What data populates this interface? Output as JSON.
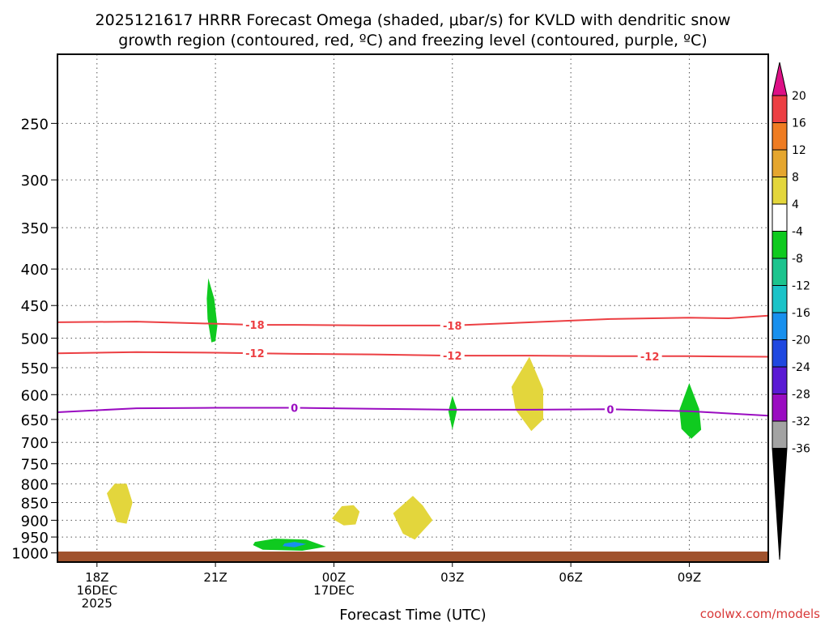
{
  "chart_data": {
    "type": "heatmap",
    "title_line1": "2025121617 HRRR Forecast Omega (shaded, μbar/s) for KVLD with dendritic snow",
    "title_line2": "growth region (contoured, red, ºC) and freezing level (contoured, purple, ºC)",
    "xlabel": "Forecast Time (UTC)",
    "ylabel": "",
    "credit": "coolwx.com/models",
    "x_ticks": [
      {
        "hour": 1,
        "lines": [
          "18Z",
          "16DEC",
          "2025"
        ]
      },
      {
        "hour": 4,
        "lines": [
          "21Z"
        ]
      },
      {
        "hour": 7,
        "lines": [
          "00Z",
          "17DEC"
        ]
      },
      {
        "hour": 10,
        "lines": [
          "03Z"
        ]
      },
      {
        "hour": 13,
        "lines": [
          "06Z"
        ]
      },
      {
        "hour": 16,
        "lines": [
          "09Z"
        ]
      }
    ],
    "xlim": [
      0,
      18
    ],
    "y_ticks": [
      250,
      300,
      350,
      400,
      450,
      500,
      550,
      600,
      650,
      700,
      750,
      800,
      850,
      900,
      950,
      1000
    ],
    "ylim_hpa": [
      200,
      1030
    ],
    "y_scale": "log, pressure increasing downward",
    "grid": true,
    "colorbar": {
      "labels": [
        "20",
        "16",
        "12",
        "8",
        "4",
        "-4",
        "-8",
        "-12",
        "-16",
        "-20",
        "-24",
        "-28",
        "-32",
        "-36"
      ],
      "colors": [
        "#ec3f43",
        "#ef7c22",
        "#e5a62e",
        "#e3d63c",
        "#ffffff",
        "#0fca1f",
        "#1cc48e",
        "#1bc3c8",
        "#1890ee",
        "#1f48e0",
        "#5a1ad4",
        "#9a0cc1",
        "#a3a3a3"
      ],
      "top_arrow_color": "#dd1086",
      "bottom_arrow_color": "#000000"
    },
    "contours": [
      {
        "label": "-18",
        "color": "#ec3f43",
        "points": [
          [
            0,
            475
          ],
          [
            2,
            474
          ],
          [
            5,
            479
          ],
          [
            6,
            479
          ],
          [
            8,
            480
          ],
          [
            10,
            480
          ],
          [
            12,
            475
          ],
          [
            14,
            470
          ],
          [
            16,
            468
          ],
          [
            17,
            469
          ],
          [
            18,
            465
          ]
        ],
        "label_hours": [
          5,
          10
        ]
      },
      {
        "label": "-12",
        "color": "#ec3f43",
        "points": [
          [
            0,
            525
          ],
          [
            2,
            523
          ],
          [
            4,
            524
          ],
          [
            6,
            526
          ],
          [
            8,
            527
          ],
          [
            10,
            529
          ],
          [
            12,
            529
          ],
          [
            14,
            530
          ],
          [
            16,
            530
          ],
          [
            18,
            531
          ]
        ],
        "label_hours": [
          5,
          10,
          15
        ]
      },
      {
        "label": "0",
        "color": "#9a0cc1",
        "points": [
          [
            0,
            635
          ],
          [
            2,
            627
          ],
          [
            4,
            626
          ],
          [
            6,
            626
          ],
          [
            8,
            628
          ],
          [
            10,
            630
          ],
          [
            12,
            630
          ],
          [
            14,
            629
          ],
          [
            16,
            633
          ],
          [
            18,
            642
          ]
        ],
        "label_hours": [
          6,
          14
        ]
      }
    ],
    "omega_regions": [
      {
        "value": -8,
        "color": "#0fca1f",
        "points": [
          [
            3.82,
            412
          ],
          [
            3.97,
            440
          ],
          [
            4.05,
            480
          ],
          [
            4.0,
            505
          ],
          [
            3.9,
            507
          ],
          [
            3.8,
            470
          ],
          [
            3.78,
            440
          ]
        ]
      },
      {
        "value": 6,
        "color": "#e3d63c",
        "points": [
          [
            1.45,
            800
          ],
          [
            1.25,
            825
          ],
          [
            1.5,
            905
          ],
          [
            1.75,
            910
          ],
          [
            1.9,
            850
          ],
          [
            1.75,
            800
          ]
        ]
      },
      {
        "value": -8,
        "color": "#0fca1f",
        "points": [
          [
            5.0,
            965
          ],
          [
            5.5,
            955
          ],
          [
            6.3,
            958
          ],
          [
            6.8,
            980
          ],
          [
            6.2,
            993
          ],
          [
            5.2,
            990
          ],
          [
            4.95,
            975
          ]
        ]
      },
      {
        "value": -16,
        "color": "#1890ee",
        "points": [
          [
            5.75,
            970
          ],
          [
            6.0,
            965
          ],
          [
            6.3,
            972
          ],
          [
            6.0,
            982
          ],
          [
            5.7,
            978
          ]
        ]
      },
      {
        "value": 6,
        "color": "#e3d63c",
        "points": [
          [
            7.2,
            860
          ],
          [
            7.5,
            857
          ],
          [
            7.65,
            875
          ],
          [
            7.55,
            912
          ],
          [
            7.25,
            915
          ],
          [
            6.95,
            895
          ]
        ]
      },
      {
        "value": 6,
        "color": "#e3d63c",
        "points": [
          [
            9.0,
            832
          ],
          [
            9.25,
            858
          ],
          [
            9.5,
            900
          ],
          [
            9.05,
            958
          ],
          [
            8.75,
            940
          ],
          [
            8.5,
            880
          ]
        ]
      },
      {
        "value": -8,
        "color": "#0fca1f",
        "points": [
          [
            10.0,
            602
          ],
          [
            10.12,
            630
          ],
          [
            10.0,
            672
          ],
          [
            9.9,
            633
          ]
        ]
      },
      {
        "value": 6,
        "color": "#e3d63c",
        "points": [
          [
            11.95,
            531
          ],
          [
            12.3,
            590
          ],
          [
            12.3,
            650
          ],
          [
            12.0,
            675
          ],
          [
            11.6,
            630
          ],
          [
            11.5,
            585
          ]
        ]
      },
      {
        "value": -8,
        "color": "#0fca1f",
        "points": [
          [
            16.0,
            578
          ],
          [
            16.25,
            628
          ],
          [
            16.3,
            672
          ],
          [
            16.05,
            692
          ],
          [
            15.8,
            670
          ],
          [
            15.75,
            630
          ]
        ]
      }
    ],
    "ground_color": "#a0522d"
  }
}
